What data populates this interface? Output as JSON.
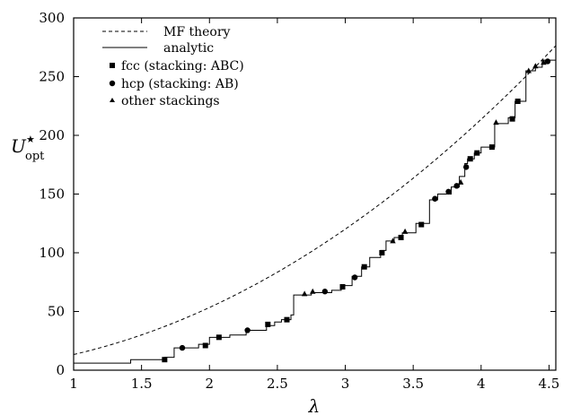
{
  "chart_data": {
    "type": "line",
    "title": "",
    "xlabel": "λ",
    "ylabel": "U",
    "ylabel_superscript": "★",
    "ylabel_subscript": "opt",
    "xlim": [
      1,
      4.55
    ],
    "ylim": [
      0,
      300
    ],
    "xticks": [
      1,
      1.5,
      2,
      2.5,
      3,
      3.5,
      4,
      4.5
    ],
    "xtick_labels": [
      "1",
      "1.5",
      "2",
      "2.5",
      "3",
      "3.5",
      "4",
      "4.5"
    ],
    "yticks": [
      0,
      50,
      100,
      150,
      200,
      250,
      300
    ],
    "ytick_labels": [
      "0",
      "50",
      "100",
      "150",
      "200",
      "250",
      "300"
    ],
    "grid": false,
    "legend_position": "top-left",
    "legend": [
      {
        "label": "MF theory",
        "style": "dashed-line"
      },
      {
        "label": "analytic",
        "style": "solid-line"
      },
      {
        "label": "fcc (stacking: ABC)",
        "style": "square-marker"
      },
      {
        "label": "hcp (stacking: AB)",
        "style": "circle-marker"
      },
      {
        "label": "other stackings",
        "style": "triangle-marker"
      }
    ],
    "series": [
      {
        "kind": "mf-curve",
        "style": "dashed",
        "formula_coefficient": 13.35,
        "formula_exponent": 2
      },
      {
        "kind": "analytic-steps",
        "style": "solid",
        "steps": [
          [
            1.0,
            6
          ],
          [
            1.42,
            9
          ],
          [
            1.67,
            11
          ],
          [
            1.74,
            19
          ],
          [
            1.92,
            22
          ],
          [
            2.0,
            28
          ],
          [
            2.15,
            30
          ],
          [
            2.27,
            34
          ],
          [
            2.42,
            38
          ],
          [
            2.48,
            41
          ],
          [
            2.53,
            43
          ],
          [
            2.6,
            47
          ],
          [
            2.62,
            64
          ],
          [
            2.75,
            66
          ],
          [
            2.9,
            68
          ],
          [
            2.97,
            72
          ],
          [
            3.05,
            80
          ],
          [
            3.12,
            88
          ],
          [
            3.18,
            96
          ],
          [
            3.26,
            102
          ],
          [
            3.3,
            110
          ],
          [
            3.36,
            113
          ],
          [
            3.42,
            117
          ],
          [
            3.52,
            125
          ],
          [
            3.62,
            145
          ],
          [
            3.68,
            150
          ],
          [
            3.78,
            156
          ],
          [
            3.84,
            165
          ],
          [
            3.88,
            176
          ],
          [
            3.9,
            180
          ],
          [
            3.95,
            185
          ],
          [
            4.0,
            190
          ],
          [
            4.1,
            210
          ],
          [
            4.2,
            215
          ],
          [
            4.25,
            229
          ],
          [
            4.33,
            255
          ],
          [
            4.4,
            258
          ],
          [
            4.45,
            264
          ],
          [
            4.55,
            268
          ]
        ]
      },
      {
        "kind": "markers",
        "marker": "square",
        "points": [
          [
            1.67,
            9
          ],
          [
            1.97,
            21
          ],
          [
            2.07,
            28
          ],
          [
            2.43,
            39
          ],
          [
            2.57,
            43
          ],
          [
            2.98,
            71
          ],
          [
            3.14,
            88
          ],
          [
            3.27,
            100
          ],
          [
            3.41,
            113
          ],
          [
            3.56,
            124
          ],
          [
            3.92,
            180
          ],
          [
            3.97,
            185
          ],
          [
            4.08,
            190
          ],
          [
            4.23,
            214
          ],
          [
            4.27,
            229
          ]
        ]
      },
      {
        "kind": "markers",
        "marker": "circle",
        "points": [
          [
            1.8,
            19
          ],
          [
            2.28,
            34
          ],
          [
            2.85,
            67
          ],
          [
            3.07,
            79
          ],
          [
            3.66,
            146
          ],
          [
            3.76,
            152
          ],
          [
            3.82,
            157
          ],
          [
            3.89,
            173
          ],
          [
            4.49,
            263
          ]
        ]
      },
      {
        "kind": "markers",
        "marker": "triangle",
        "points": [
          [
            2.7,
            65
          ],
          [
            2.76,
            67
          ],
          [
            3.35,
            110
          ],
          [
            3.44,
            118
          ],
          [
            3.85,
            160
          ],
          [
            4.11,
            211
          ],
          [
            4.35,
            255
          ],
          [
            4.4,
            259
          ],
          [
            4.46,
            262
          ]
        ]
      }
    ]
  }
}
